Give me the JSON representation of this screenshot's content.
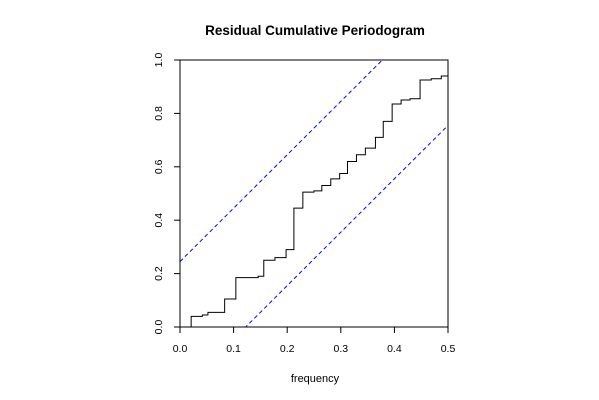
{
  "chart_data": {
    "type": "line",
    "title": "Residual Cumulative Periodogram",
    "xlabel": "frequency",
    "ylabel": "",
    "xlim": [
      0.0,
      0.5
    ],
    "ylim": [
      0.0,
      1.0
    ],
    "x_ticks": [
      "0.0",
      "0.1",
      "0.2",
      "0.3",
      "0.4",
      "0.5"
    ],
    "y_ticks": [
      "0.0",
      "0.2",
      "0.4",
      "0.6",
      "0.8",
      "1.0"
    ],
    "grid": false,
    "colors": {
      "series": "#000000",
      "bands": "#0000ff"
    },
    "series": [
      {
        "style": "step",
        "x": [
          0.0,
          0.0208,
          0.0417,
          0.0521,
          0.0833,
          0.1042,
          0.1458,
          0.1563,
          0.1771,
          0.1979,
          0.2125,
          0.2292,
          0.25,
          0.2646,
          0.2813,
          0.2979,
          0.3125,
          0.3292,
          0.3458,
          0.3646,
          0.3792,
          0.3958,
          0.4125,
          0.4292,
          0.4479,
          0.4688,
          0.4875,
          0.5
        ],
        "y": [
          0.0,
          0.04,
          0.045,
          0.055,
          0.105,
          0.185,
          0.19,
          0.25,
          0.26,
          0.29,
          0.445,
          0.505,
          0.51,
          0.53,
          0.555,
          0.575,
          0.62,
          0.645,
          0.67,
          0.71,
          0.77,
          0.835,
          0.85,
          0.855,
          0.925,
          0.93,
          0.94,
          1.0
        ]
      },
      {
        "style": "dashed",
        "x": [
          0.0,
          0.5
        ],
        "y": [
          0.245,
          1.245
        ]
      },
      {
        "style": "dashed",
        "x": [
          0.0,
          0.5
        ],
        "y": [
          -0.245,
          0.755
        ]
      }
    ]
  }
}
